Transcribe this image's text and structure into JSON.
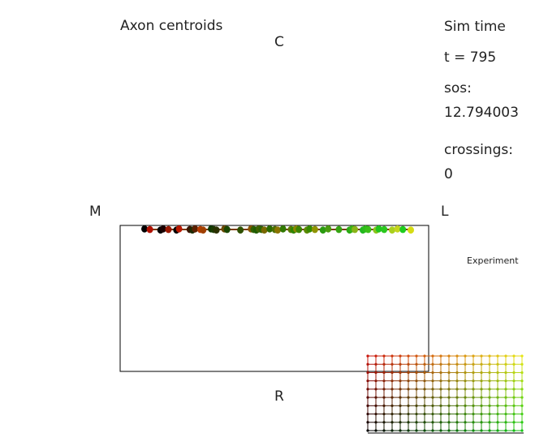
{
  "title": "Axon centroids",
  "axes": {
    "top": "C",
    "left": "M",
    "right": "L",
    "bottom": "R"
  },
  "sim": {
    "heading": "Sim time",
    "time_text": "t =  795",
    "sos_label": "sos:",
    "sos_value": "12.794003",
    "crossings_label": "crossings:",
    "crossings_value": "0"
  },
  "experiment_label": "Experiment",
  "colors": {
    "corner_rl": "#c8140a",
    "corner_rr": "#e6e614",
    "corner_cl": "#000000",
    "corner_cr": "#14c814"
  },
  "centroid_dots": [
    {
      "u": 0.0,
      "color": "#000000"
    },
    {
      "u": 0.02,
      "color": "#b01000"
    },
    {
      "u": 0.06,
      "color": "#000000"
    },
    {
      "u": 0.07,
      "color": "#1a0000"
    },
    {
      "u": 0.09,
      "color": "#9a1800"
    },
    {
      "u": 0.12,
      "color": "#000000"
    },
    {
      "u": 0.13,
      "color": "#b81800"
    },
    {
      "u": 0.17,
      "color": "#3b1400"
    },
    {
      "u": 0.18,
      "color": "#1b2b00"
    },
    {
      "u": 0.19,
      "color": "#5a2000"
    },
    {
      "u": 0.21,
      "color": "#b73b00"
    },
    {
      "u": 0.22,
      "color": "#a04000"
    },
    {
      "u": 0.25,
      "color": "#0e3800"
    },
    {
      "u": 0.26,
      "color": "#1a3a00"
    },
    {
      "u": 0.27,
      "color": "#2a3000"
    },
    {
      "u": 0.3,
      "color": "#6a4800"
    },
    {
      "u": 0.31,
      "color": "#1a4600"
    },
    {
      "u": 0.36,
      "color": "#2f5000"
    },
    {
      "u": 0.4,
      "color": "#8a5500"
    },
    {
      "u": 0.41,
      "color": "#2e6000"
    },
    {
      "u": 0.42,
      "color": "#1e5c00"
    },
    {
      "u": 0.43,
      "color": "#416200"
    },
    {
      "u": 0.44,
      "color": "#2c6400"
    },
    {
      "u": 0.45,
      "color": "#7a6800"
    },
    {
      "u": 0.47,
      "color": "#2c6a00"
    },
    {
      "u": 0.49,
      "color": "#4a7000"
    },
    {
      "u": 0.5,
      "color": "#8a7400"
    },
    {
      "u": 0.52,
      "color": "#307800"
    },
    {
      "u": 0.55,
      "color": "#5a7c00"
    },
    {
      "u": 0.56,
      "color": "#2f8400"
    },
    {
      "u": 0.57,
      "color": "#8c8600"
    },
    {
      "u": 0.58,
      "color": "#3c8400"
    },
    {
      "u": 0.61,
      "color": "#5c8a00"
    },
    {
      "u": 0.62,
      "color": "#368a00"
    },
    {
      "u": 0.64,
      "color": "#909400"
    },
    {
      "u": 0.67,
      "color": "#2a9a10"
    },
    {
      "u": 0.69,
      "color": "#4a9c10"
    },
    {
      "u": 0.73,
      "color": "#36a412"
    },
    {
      "u": 0.77,
      "color": "#2aaa14"
    },
    {
      "u": 0.78,
      "color": "#3ab016"
    },
    {
      "u": 0.79,
      "color": "#8ab418"
    },
    {
      "u": 0.82,
      "color": "#22b820"
    },
    {
      "u": 0.83,
      "color": "#2cbc1a"
    },
    {
      "u": 0.84,
      "color": "#3ac018"
    },
    {
      "u": 0.87,
      "color": "#8ac41c"
    },
    {
      "u": 0.88,
      "color": "#22c41e"
    },
    {
      "u": 0.9,
      "color": "#2ac81e"
    },
    {
      "u": 0.93,
      "color": "#aad01e"
    },
    {
      "u": 0.95,
      "color": "#c4d41e"
    },
    {
      "u": 0.97,
      "color": "#1ecc1e"
    },
    {
      "u": 1.0,
      "color": "#d6dc14"
    }
  ]
}
